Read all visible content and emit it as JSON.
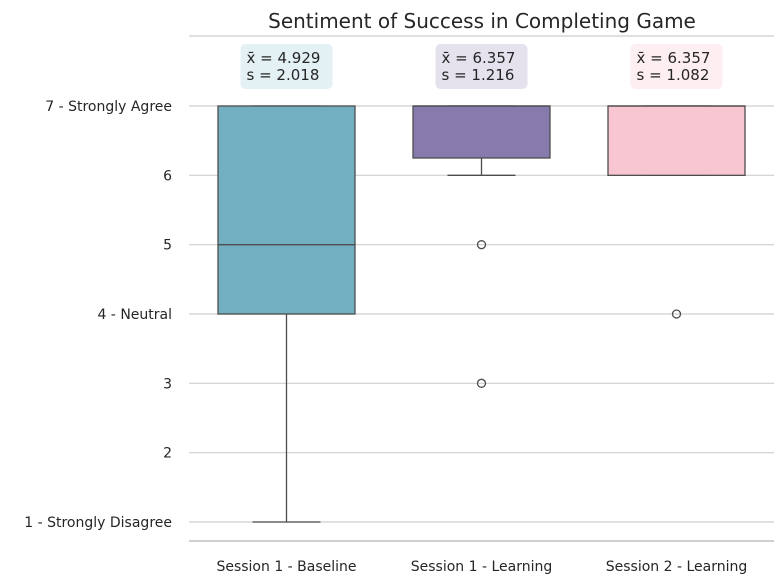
{
  "chart_data": {
    "type": "box",
    "title": "Sentiment of Success in Completing Game",
    "xlabel": "",
    "ylabel": "",
    "ylim": [
      1,
      7
    ],
    "grid": "horizontal",
    "y_ticks": [
      {
        "value": 1,
        "label": "1 - Strongly Disagree"
      },
      {
        "value": 2,
        "label": "2"
      },
      {
        "value": 3,
        "label": "3"
      },
      {
        "value": 4,
        "label": "4 - Neutral"
      },
      {
        "value": 5,
        "label": "5"
      },
      {
        "value": 6,
        "label": "6"
      },
      {
        "value": 7,
        "label": "7 - Strongly Agree"
      }
    ],
    "categories": [
      "Session 1 - Baseline",
      "Session 1 - Learning",
      "Session 2 - Learning"
    ],
    "series": [
      {
        "category": "Session 1 - Baseline",
        "color": "#72afc1",
        "annotation_bg": "#e3f0f4",
        "stats": {
          "whisker_low": 1,
          "q1": 4,
          "median": 5,
          "q3": 7,
          "whisker_high": 7
        },
        "outliers": [],
        "mean_label": "x̄ = 4.929",
        "sd_label": "s = 2.018"
      },
      {
        "category": "Session 1 - Learning",
        "color": "#877bae",
        "annotation_bg": "#e5e2ee",
        "stats": {
          "whisker_low": 6,
          "q1": 6.25,
          "median": 7,
          "q3": 7,
          "whisker_high": 7
        },
        "outliers": [
          5,
          3
        ],
        "mean_label": "x̄ = 6.357",
        "sd_label": "s = 1.216"
      },
      {
        "category": "Session 2 - Learning",
        "color": "#f8c6d1",
        "annotation_bg": "#fdeef1",
        "stats": {
          "whisker_low": 6,
          "q1": 6,
          "median": 7,
          "q3": 7,
          "whisker_high": 7
        },
        "outliers": [
          4
        ],
        "mean_label": "x̄ = 6.357",
        "sd_label": "s = 1.082"
      }
    ]
  }
}
